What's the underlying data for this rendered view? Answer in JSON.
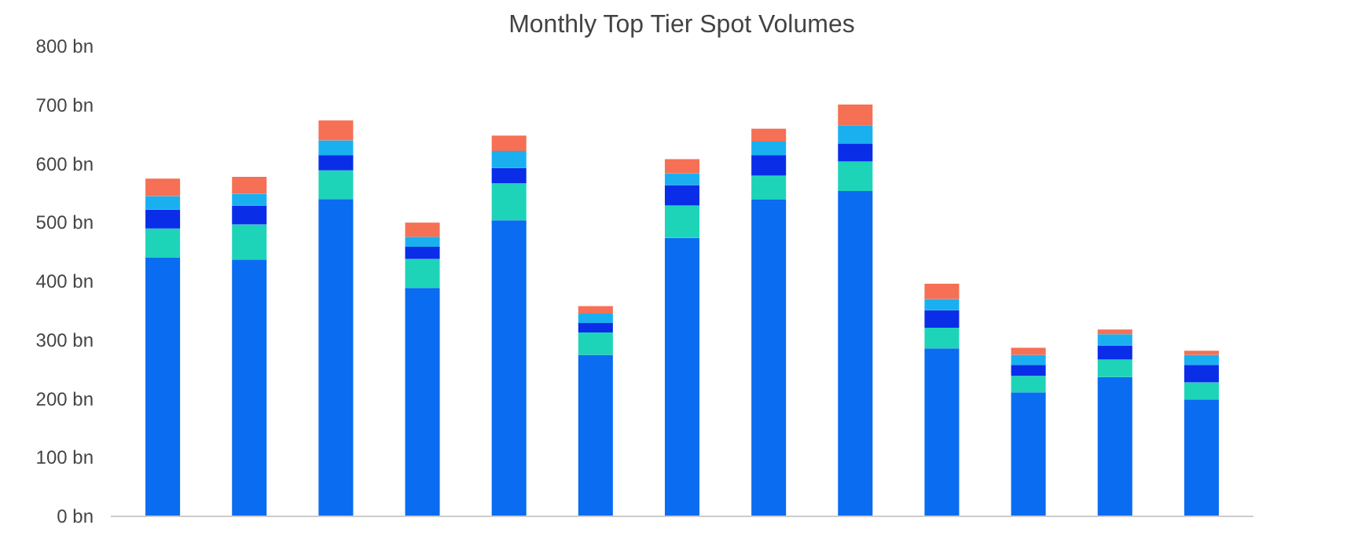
{
  "chart_data": {
    "type": "bar",
    "title": "Monthly Top Tier Spot Volumes",
    "stacked": true,
    "categories": [
      null,
      null,
      null,
      null,
      null,
      null,
      null,
      null,
      null,
      null,
      null,
      null,
      null
    ],
    "series": [
      {
        "color": "#0a6cf0",
        "values": [
          440,
          437,
          540,
          389,
          504,
          275,
          474,
          539,
          554,
          286,
          211,
          237,
          199
        ]
      },
      {
        "color": "#1ed4b8",
        "values": [
          50,
          60,
          49,
          49,
          63,
          38,
          55,
          41,
          50,
          35,
          28,
          30,
          29
        ]
      },
      {
        "color": "#0a2de8",
        "values": [
          32,
          32,
          26,
          21,
          26,
          16,
          35,
          35,
          30,
          30,
          19,
          24,
          30
        ]
      },
      {
        "color": "#1ab0f0",
        "values": [
          23,
          20,
          25,
          17,
          29,
          16,
          20,
          23,
          32,
          19,
          17,
          19,
          17
        ]
      },
      {
        "color": "#f57055",
        "values": [
          30,
          29,
          34,
          24,
          26,
          13,
          24,
          22,
          35,
          26,
          12,
          8,
          7
        ]
      }
    ],
    "ylim": [
      0,
      800
    ],
    "yticks": [
      {
        "value": 0,
        "label": "0 bn"
      },
      {
        "value": 100,
        "label": "100 bn"
      },
      {
        "value": 200,
        "label": "200 bn"
      },
      {
        "value": 300,
        "label": "300 bn"
      },
      {
        "value": 400,
        "label": "400 bn"
      },
      {
        "value": 500,
        "label": "500 bn"
      },
      {
        "value": 600,
        "label": "600 bn"
      },
      {
        "value": 700,
        "label": "700 bn"
      },
      {
        "value": 800,
        "label": "800 bn"
      }
    ],
    "grid": false
  }
}
